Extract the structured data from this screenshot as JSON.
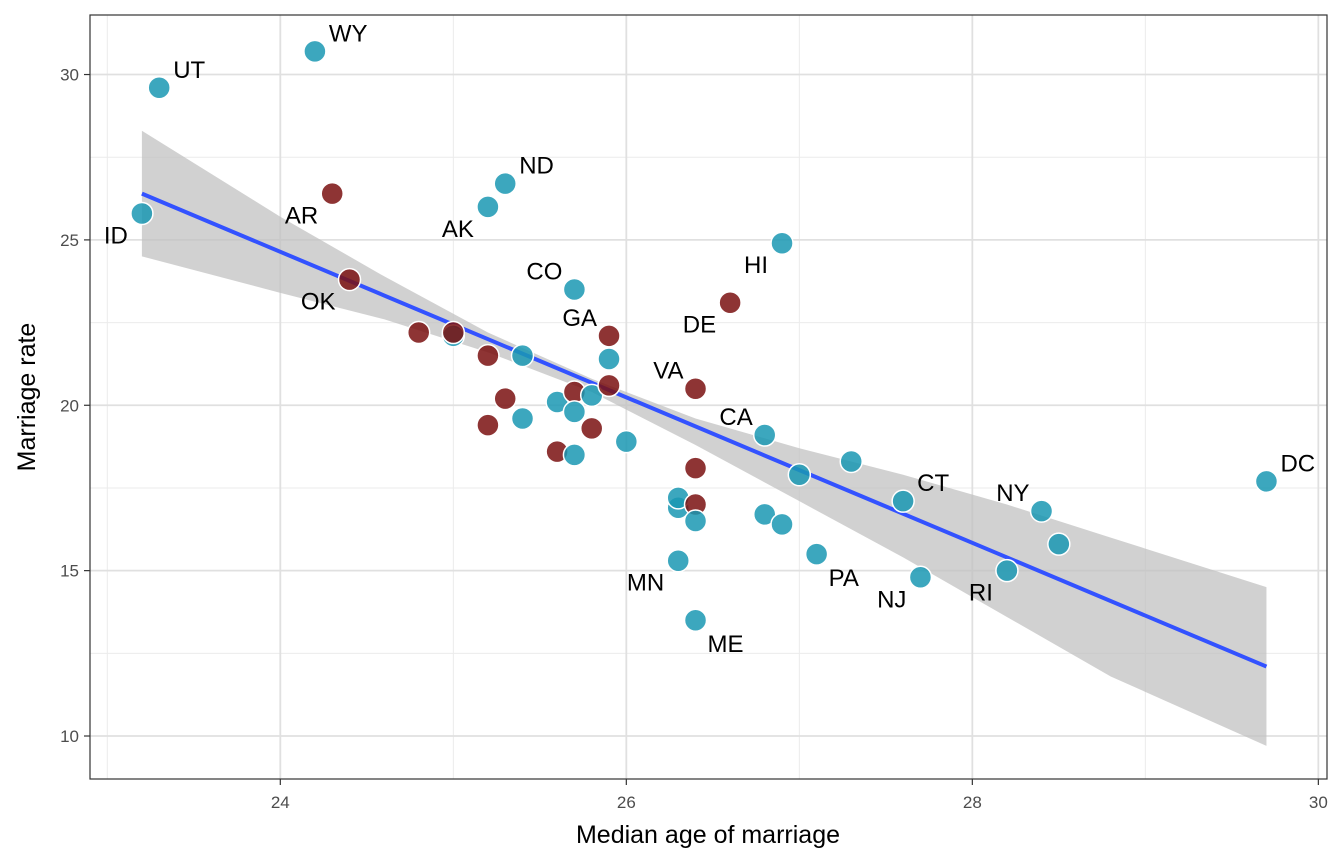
{
  "chart_data": {
    "type": "scatter",
    "title": "",
    "xlabel": "Median age of marriage",
    "ylabel": "Marriage rate",
    "xlim": [
      22.9,
      30.05
    ],
    "ylim": [
      8.7,
      31.8
    ],
    "x_ticks": [
      24,
      26,
      28,
      30
    ],
    "y_ticks": [
      10,
      15,
      20,
      25,
      30
    ],
    "grid": true,
    "legend": "none",
    "colors": {
      "non_southern": "#1a98b3",
      "southern": "#7a1010",
      "fit_line": "#3352ff",
      "confidence_band": "#bfbfbf"
    },
    "fit": {
      "x": [
        23.2,
        29.7
      ],
      "y": [
        26.4,
        12.1
      ],
      "band_lower": [
        24.5,
        9.7
      ],
      "band_upper": [
        28.3,
        14.5
      ]
    },
    "band_points": [
      [
        23.2,
        24.5,
        28.3
      ],
      [
        24.0,
        23.4,
        25.7
      ],
      [
        24.6,
        22.6,
        23.9
      ],
      [
        25.2,
        21.6,
        22.2
      ],
      [
        25.8,
        20.4,
        20.8
      ],
      [
        26.4,
        18.8,
        19.6
      ],
      [
        27.0,
        17.1,
        18.7
      ],
      [
        27.6,
        15.4,
        17.9
      ],
      [
        28.2,
        13.6,
        17.0
      ],
      [
        28.8,
        11.8,
        16.0
      ],
      [
        29.7,
        9.7,
        14.5
      ]
    ],
    "points": [
      {
        "x": 23.2,
        "y": 25.8,
        "southern": false,
        "label": "ID"
      },
      {
        "x": 23.3,
        "y": 29.6,
        "southern": false,
        "label": "UT"
      },
      {
        "x": 24.2,
        "y": 30.7,
        "southern": false,
        "label": "WY"
      },
      {
        "x": 24.3,
        "y": 26.4,
        "southern": true,
        "label": "AR"
      },
      {
        "x": 24.4,
        "y": 23.8,
        "southern": true,
        "label": "OK"
      },
      {
        "x": 24.8,
        "y": 22.2,
        "southern": true,
        "label": ""
      },
      {
        "x": 25.0,
        "y": 22.1,
        "southern": false,
        "label": ""
      },
      {
        "x": 25.0,
        "y": 22.2,
        "southern": true,
        "label": ""
      },
      {
        "x": 25.2,
        "y": 21.5,
        "southern": true,
        "label": ""
      },
      {
        "x": 25.2,
        "y": 26.0,
        "southern": false,
        "label": "AK"
      },
      {
        "x": 25.3,
        "y": 26.7,
        "southern": false,
        "label": "ND"
      },
      {
        "x": 25.3,
        "y": 20.2,
        "southern": true,
        "label": ""
      },
      {
        "x": 25.2,
        "y": 19.4,
        "southern": true,
        "label": ""
      },
      {
        "x": 25.4,
        "y": 21.5,
        "southern": false,
        "label": ""
      },
      {
        "x": 25.4,
        "y": 19.6,
        "southern": false,
        "label": ""
      },
      {
        "x": 25.6,
        "y": 20.1,
        "southern": false,
        "label": ""
      },
      {
        "x": 25.6,
        "y": 18.6,
        "southern": true,
        "label": ""
      },
      {
        "x": 25.7,
        "y": 23.5,
        "southern": false,
        "label": "CO"
      },
      {
        "x": 25.7,
        "y": 20.4,
        "southern": true,
        "label": ""
      },
      {
        "x": 25.7,
        "y": 19.8,
        "southern": false,
        "label": ""
      },
      {
        "x": 25.7,
        "y": 18.5,
        "southern": false,
        "label": ""
      },
      {
        "x": 25.8,
        "y": 20.3,
        "southern": false,
        "label": ""
      },
      {
        "x": 25.8,
        "y": 19.3,
        "southern": true,
        "label": ""
      },
      {
        "x": 25.9,
        "y": 22.1,
        "southern": true,
        "label": "GA"
      },
      {
        "x": 25.9,
        "y": 21.4,
        "southern": false,
        "label": ""
      },
      {
        "x": 25.9,
        "y": 20.6,
        "southern": true,
        "label": ""
      },
      {
        "x": 26.0,
        "y": 18.9,
        "southern": false,
        "label": ""
      },
      {
        "x": 26.3,
        "y": 16.9,
        "southern": false,
        "label": ""
      },
      {
        "x": 26.3,
        "y": 17.2,
        "southern": false,
        "label": ""
      },
      {
        "x": 26.3,
        "y": 15.3,
        "southern": false,
        "label": "MN"
      },
      {
        "x": 26.4,
        "y": 20.5,
        "southern": true,
        "label": "VA"
      },
      {
        "x": 26.4,
        "y": 18.1,
        "southern": true,
        "label": ""
      },
      {
        "x": 26.4,
        "y": 17.0,
        "southern": true,
        "label": ""
      },
      {
        "x": 26.4,
        "y": 16.5,
        "southern": false,
        "label": ""
      },
      {
        "x": 26.4,
        "y": 13.5,
        "southern": false,
        "label": "ME"
      },
      {
        "x": 26.6,
        "y": 23.1,
        "southern": true,
        "label": "DE"
      },
      {
        "x": 26.8,
        "y": 19.1,
        "southern": false,
        "label": "CA"
      },
      {
        "x": 26.8,
        "y": 16.7,
        "southern": false,
        "label": ""
      },
      {
        "x": 26.9,
        "y": 24.9,
        "southern": false,
        "label": "HI"
      },
      {
        "x": 26.9,
        "y": 16.4,
        "southern": false,
        "label": ""
      },
      {
        "x": 27.0,
        "y": 17.9,
        "southern": false,
        "label": ""
      },
      {
        "x": 27.1,
        "y": 15.5,
        "southern": false,
        "label": "PA"
      },
      {
        "x": 27.3,
        "y": 18.3,
        "southern": false,
        "label": ""
      },
      {
        "x": 27.6,
        "y": 17.1,
        "southern": false,
        "label": "CT"
      },
      {
        "x": 27.7,
        "y": 14.8,
        "southern": false,
        "label": "NJ"
      },
      {
        "x": 28.2,
        "y": 15.0,
        "southern": false,
        "label": "RI"
      },
      {
        "x": 28.4,
        "y": 16.8,
        "southern": false,
        "label": "NY"
      },
      {
        "x": 28.5,
        "y": 15.8,
        "southern": false,
        "label": ""
      },
      {
        "x": 29.7,
        "y": 17.7,
        "southern": false,
        "label": "DC"
      }
    ],
    "label_placement": {
      "ID": "left-below",
      "UT": "right-above",
      "WY": "right-above",
      "AR": "left-below",
      "OK": "left-below",
      "AK": "left-below",
      "ND": "right-above",
      "CO": "left-above",
      "GA": "left-above",
      "DE": "left-below",
      "HI": "left-below",
      "VA": "left-above",
      "CA": "left-above",
      "MN": "left-below",
      "ME": "right-below",
      "PA": "right-below",
      "NJ": "left-below",
      "RI": "left-below",
      "CT": "right-above",
      "NY": "left-above",
      "DC": "right-above"
    }
  }
}
